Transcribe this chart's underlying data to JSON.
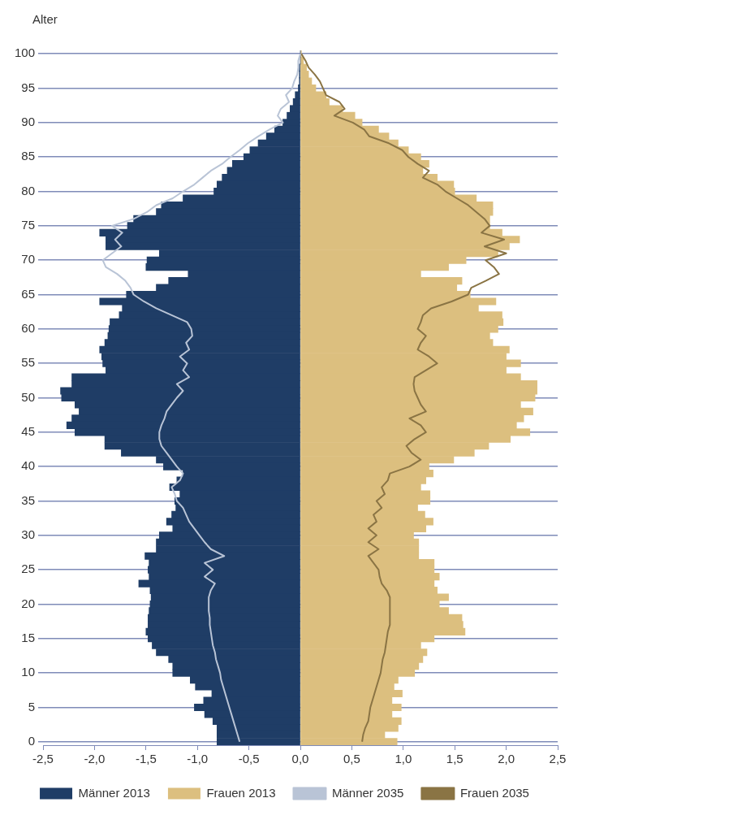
{
  "chart_data": {
    "type": "bar",
    "orientation": "horizontal",
    "stacked": true,
    "ylabel": "Alter",
    "categories": [
      "100",
      null,
      null,
      null,
      null,
      "95",
      null,
      null,
      null,
      null,
      "90",
      null,
      null,
      null,
      null,
      "85",
      null,
      null,
      null,
      null,
      "80",
      null,
      null,
      null,
      null,
      "75",
      null,
      null,
      null,
      null,
      "70",
      null,
      null,
      null,
      null,
      "65",
      null,
      null,
      null,
      null,
      "60",
      null,
      null,
      null,
      null,
      "55",
      null,
      null,
      null,
      null,
      "50",
      null,
      null,
      null,
      null,
      "45",
      null,
      null,
      null,
      null,
      "40",
      null,
      null,
      null,
      null,
      "35",
      null,
      null,
      null,
      null,
      "30",
      null,
      null,
      null,
      null,
      "25",
      null,
      null,
      null,
      null,
      "20",
      null,
      null,
      null,
      null,
      "15",
      null,
      null,
      null,
      null,
      "10",
      null,
      null,
      null,
      null,
      "5",
      null,
      null,
      null,
      null,
      "0"
    ],
    "xlim": [
      -2.5,
      2.5
    ],
    "xticks": [
      {
        "value": -2.5,
        "label": "-2,5"
      },
      {
        "value": -2,
        "label": "-2,0"
      },
      {
        "value": -1.5,
        "label": "-1,5"
      },
      {
        "value": -1,
        "label": "-1,0"
      },
      {
        "value": -0.5,
        "label": "-0,5"
      },
      {
        "value": 0,
        "label": "0,0"
      },
      {
        "value": 0.5,
        "label": "0,5"
      },
      {
        "value": 1,
        "label": "1,0"
      },
      {
        "value": 1.5,
        "label": "1,5"
      },
      {
        "value": 2,
        "label": "2,0"
      },
      {
        "value": 2.5,
        "label": "2,5"
      }
    ],
    "grid": "y",
    "legend": "bottom",
    "series": [
      {
        "name": "Männer 2013",
        "color": "#1f3d66",
        "values": [
          0,
          0,
          -0.01,
          -0.01,
          -0.01,
          -0.02,
          -0.05,
          -0.07,
          -0.1,
          -0.13,
          -0.17,
          -0.25,
          -0.33,
          -0.41,
          -0.49,
          -0.55,
          -0.66,
          -0.71,
          -0.76,
          -0.81,
          -0.84,
          -1.14,
          -1.35,
          -1.4,
          -1.62,
          -1.68,
          -1.95,
          -1.89,
          -1.89,
          -1.37,
          -1.49,
          -1.5,
          -1.09,
          -1.28,
          -1.4,
          -1.69,
          -1.95,
          -1.73,
          -1.76,
          -1.85,
          -1.86,
          -1.87,
          -1.9,
          -1.95,
          -1.93,
          -1.92,
          -1.89,
          -2.22,
          -2.22,
          -2.33,
          -2.32,
          -2.19,
          -2.15,
          -2.22,
          -2.27,
          -2.19,
          -1.9,
          -1.9,
          -1.74,
          -1.4,
          -1.33,
          -1.14,
          -1.2,
          -1.27,
          -1.17,
          -1.22,
          -1.21,
          -1.25,
          -1.3,
          -1.24,
          -1.37,
          -1.4,
          -1.4,
          -1.51,
          -1.47,
          -1.48,
          -1.47,
          -1.57,
          -1.46,
          -1.45,
          -1.46,
          -1.47,
          -1.48,
          -1.48,
          -1.5,
          -1.48,
          -1.44,
          -1.4,
          -1.28,
          -1.24,
          -1.24,
          -1.07,
          -1.02,
          -0.86,
          -0.94,
          -1.03,
          -0.93,
          -0.85,
          -0.81,
          -0.81,
          -0.81
        ]
      },
      {
        "name": "Frauen 2013",
        "color": "#dcbf7f",
        "values": [
          0.01,
          0.03,
          0.06,
          0.08,
          0.11,
          0.15,
          0.25,
          0.28,
          0.41,
          0.53,
          0.6,
          0.76,
          0.86,
          0.95,
          1.05,
          1.17,
          1.25,
          1.19,
          1.33,
          1.49,
          1.5,
          1.71,
          1.87,
          1.87,
          1.84,
          1.84,
          1.96,
          2.13,
          2.03,
          1.92,
          1.61,
          1.44,
          1.17,
          1.57,
          1.52,
          1.65,
          1.9,
          1.73,
          1.96,
          1.97,
          1.92,
          1.84,
          1.87,
          2.03,
          2.0,
          2.14,
          2.0,
          2.14,
          2.3,
          2.3,
          2.28,
          2.14,
          2.26,
          2.17,
          2.1,
          2.23,
          2.04,
          1.83,
          1.69,
          1.49,
          1.25,
          1.29,
          1.22,
          1.17,
          1.26,
          1.26,
          1.14,
          1.21,
          1.29,
          1.22,
          1.1,
          1.15,
          1.15,
          1.15,
          1.3,
          1.3,
          1.35,
          1.3,
          1.33,
          1.44,
          1.35,
          1.44,
          1.57,
          1.58,
          1.6,
          1.3,
          1.17,
          1.23,
          1.19,
          1.15,
          1.11,
          0.95,
          0.91,
          0.99,
          0.89,
          0.98,
          0.89,
          0.98,
          0.95,
          0.82,
          0.94
        ]
      },
      {
        "name": "Männer 2035",
        "type": "line",
        "color": "#b9c4d6",
        "values": [
          0,
          -0.02,
          -0.02,
          -0.03,
          -0.06,
          -0.08,
          -0.14,
          -0.11,
          -0.19,
          -0.22,
          -0.17,
          -0.3,
          -0.41,
          -0.51,
          -0.59,
          -0.68,
          -0.76,
          -0.87,
          -0.95,
          -1.03,
          -1.14,
          -1.24,
          -1.4,
          -1.49,
          -1.62,
          -1.83,
          -1.73,
          -1.8,
          -1.74,
          -1.83,
          -1.92,
          -1.89,
          -1.78,
          -1.7,
          -1.65,
          -1.62,
          -1.52,
          -1.4,
          -1.25,
          -1.1,
          -1.06,
          -1.05,
          -1.11,
          -1.08,
          -1.17,
          -1.1,
          -1.14,
          -1.08,
          -1.2,
          -1.14,
          -1.2,
          -1.25,
          -1.3,
          -1.32,
          -1.35,
          -1.37,
          -1.37,
          -1.35,
          -1.3,
          -1.25,
          -1.2,
          -1.14,
          -1.17,
          -1.25,
          -1.22,
          -1.2,
          -1.14,
          -1.11,
          -1.08,
          -1.03,
          -0.98,
          -0.93,
          -0.87,
          -0.74,
          -0.93,
          -0.85,
          -0.93,
          -0.83,
          -0.87,
          -0.89,
          -0.89,
          -0.89,
          -0.88,
          -0.88,
          -0.87,
          -0.86,
          -0.85,
          -0.83,
          -0.82,
          -0.8,
          -0.78,
          -0.77,
          -0.75,
          -0.73,
          -0.71,
          -0.69,
          -0.67,
          -0.65,
          -0.63,
          -0.61,
          -0.59
        ]
      },
      {
        "name": "Frauen 2035",
        "type": "line",
        "color": "#8a7444",
        "values": [
          0.01,
          0.05,
          0.08,
          0.14,
          0.19,
          0.22,
          0.25,
          0.38,
          0.43,
          0.33,
          0.51,
          0.62,
          0.67,
          0.86,
          0.99,
          1.05,
          1.14,
          1.25,
          1.19,
          1.33,
          1.41,
          1.52,
          1.63,
          1.71,
          1.79,
          1.84,
          1.76,
          1.98,
          1.79,
          2.0,
          1.8,
          1.88,
          1.93,
          1.8,
          1.66,
          1.63,
          1.47,
          1.27,
          1.19,
          1.17,
          1.14,
          1.22,
          1.17,
          1.14,
          1.25,
          1.33,
          1.22,
          1.11,
          1.1,
          1.11,
          1.14,
          1.17,
          1.22,
          1.06,
          1.17,
          1.22,
          1.11,
          1.03,
          1.08,
          1.17,
          1.06,
          0.87,
          0.85,
          0.79,
          0.82,
          0.74,
          0.79,
          0.71,
          0.74,
          0.66,
          0.74,
          0.66,
          0.76,
          0.66,
          0.71,
          0.76,
          0.77,
          0.79,
          0.84,
          0.87,
          0.87,
          0.87,
          0.87,
          0.87,
          0.85,
          0.84,
          0.83,
          0.82,
          0.8,
          0.79,
          0.78,
          0.76,
          0.74,
          0.72,
          0.7,
          0.68,
          0.67,
          0.66,
          0.63,
          0.61,
          0.6
        ]
      }
    ]
  }
}
